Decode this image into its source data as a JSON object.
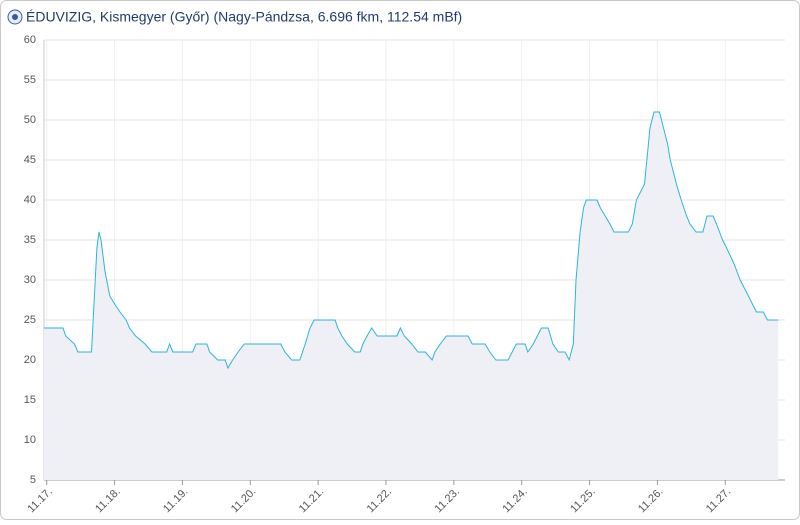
{
  "chart_data": {
    "type": "area",
    "title": "ÉDUVIZIG, Kismegyer (Győr) (Nagy-Pándzsa, 6.696 fkm, 112.54 mBf)",
    "color": "#2bb5d8",
    "fill": "#eef0f6",
    "grid": true,
    "x": [
      16.96,
      17.24,
      17.28,
      17.41,
      17.46,
      17.66,
      17.74,
      17.77,
      17.8,
      17.86,
      17.93,
      18.0,
      18.08,
      18.17,
      18.22,
      18.31,
      18.45,
      18.55,
      18.77,
      18.81,
      18.86,
      19.15,
      19.2,
      19.36,
      19.4,
      19.52,
      19.63,
      19.67,
      19.74,
      19.82,
      19.91,
      20.45,
      20.51,
      20.61,
      20.73,
      20.81,
      20.88,
      20.94,
      21.25,
      21.29,
      21.35,
      21.43,
      21.54,
      21.62,
      21.66,
      21.72,
      21.79,
      21.87,
      22.16,
      22.21,
      22.27,
      22.38,
      22.47,
      22.58,
      22.68,
      22.72,
      22.8,
      22.89,
      23.21,
      23.27,
      23.46,
      23.53,
      23.62,
      23.8,
      23.86,
      23.92,
      24.05,
      24.09,
      24.17,
      24.23,
      24.29,
      24.39,
      24.46,
      24.54,
      24.64,
      24.7,
      24.76,
      24.8,
      24.86,
      24.91,
      24.95,
      25.11,
      25.16,
      25.23,
      25.3,
      25.36,
      25.57,
      25.63,
      25.69,
      25.75,
      25.81,
      25.89,
      25.95,
      26.03,
      26.09,
      26.15,
      26.19,
      26.28,
      26.35,
      26.43,
      26.48,
      26.57,
      26.67,
      26.73,
      26.82,
      26.87,
      26.96,
      27.02,
      27.13,
      27.22,
      27.28,
      27.34,
      27.4,
      27.46,
      27.56,
      27.62,
      27.78
    ],
    "values": [
      24,
      24,
      23,
      22,
      21,
      21,
      34,
      36,
      35,
      31,
      28,
      27,
      26,
      25,
      24,
      23,
      22,
      21,
      21,
      22,
      21,
      21,
      22,
      22,
      21,
      20,
      20,
      19,
      20,
      21,
      22,
      22,
      21,
      20,
      20,
      22,
      24,
      25,
      25,
      24,
      23,
      22,
      21,
      21,
      22,
      23,
      24,
      23,
      23,
      24,
      23,
      22,
      21,
      21,
      20,
      21,
      22,
      23,
      23,
      22,
      22,
      21,
      20,
      20,
      21,
      22,
      22,
      21,
      22,
      23,
      24,
      24,
      22,
      21,
      21,
      20,
      22,
      30,
      36,
      39,
      40,
      40,
      39,
      38,
      37,
      36,
      36,
      37,
      40,
      41,
      42,
      49,
      51,
      51,
      49,
      47,
      45,
      42,
      40,
      38,
      37,
      36,
      36,
      38,
      38,
      37,
      35,
      34,
      32,
      30,
      29,
      28,
      27,
      26,
      26,
      25,
      25
    ],
    "xlim": [
      16.96,
      27.88
    ],
    "xticks": [
      {
        "value": 17,
        "label": "11.17."
      },
      {
        "value": 18,
        "label": "11.18."
      },
      {
        "value": 19,
        "label": "11.19."
      },
      {
        "value": 20,
        "label": "11.20."
      },
      {
        "value": 21,
        "label": "11.21."
      },
      {
        "value": 22,
        "label": "11.22."
      },
      {
        "value": 23,
        "label": "11.23."
      },
      {
        "value": 24,
        "label": "11.24."
      },
      {
        "value": 25,
        "label": "11.25."
      },
      {
        "value": 26,
        "label": "11.26."
      },
      {
        "value": 27,
        "label": "11.27."
      }
    ],
    "ylim": [
      5,
      60
    ],
    "yticks": [
      5,
      10,
      15,
      20,
      25,
      30,
      35,
      40,
      45,
      50,
      55,
      60
    ]
  }
}
